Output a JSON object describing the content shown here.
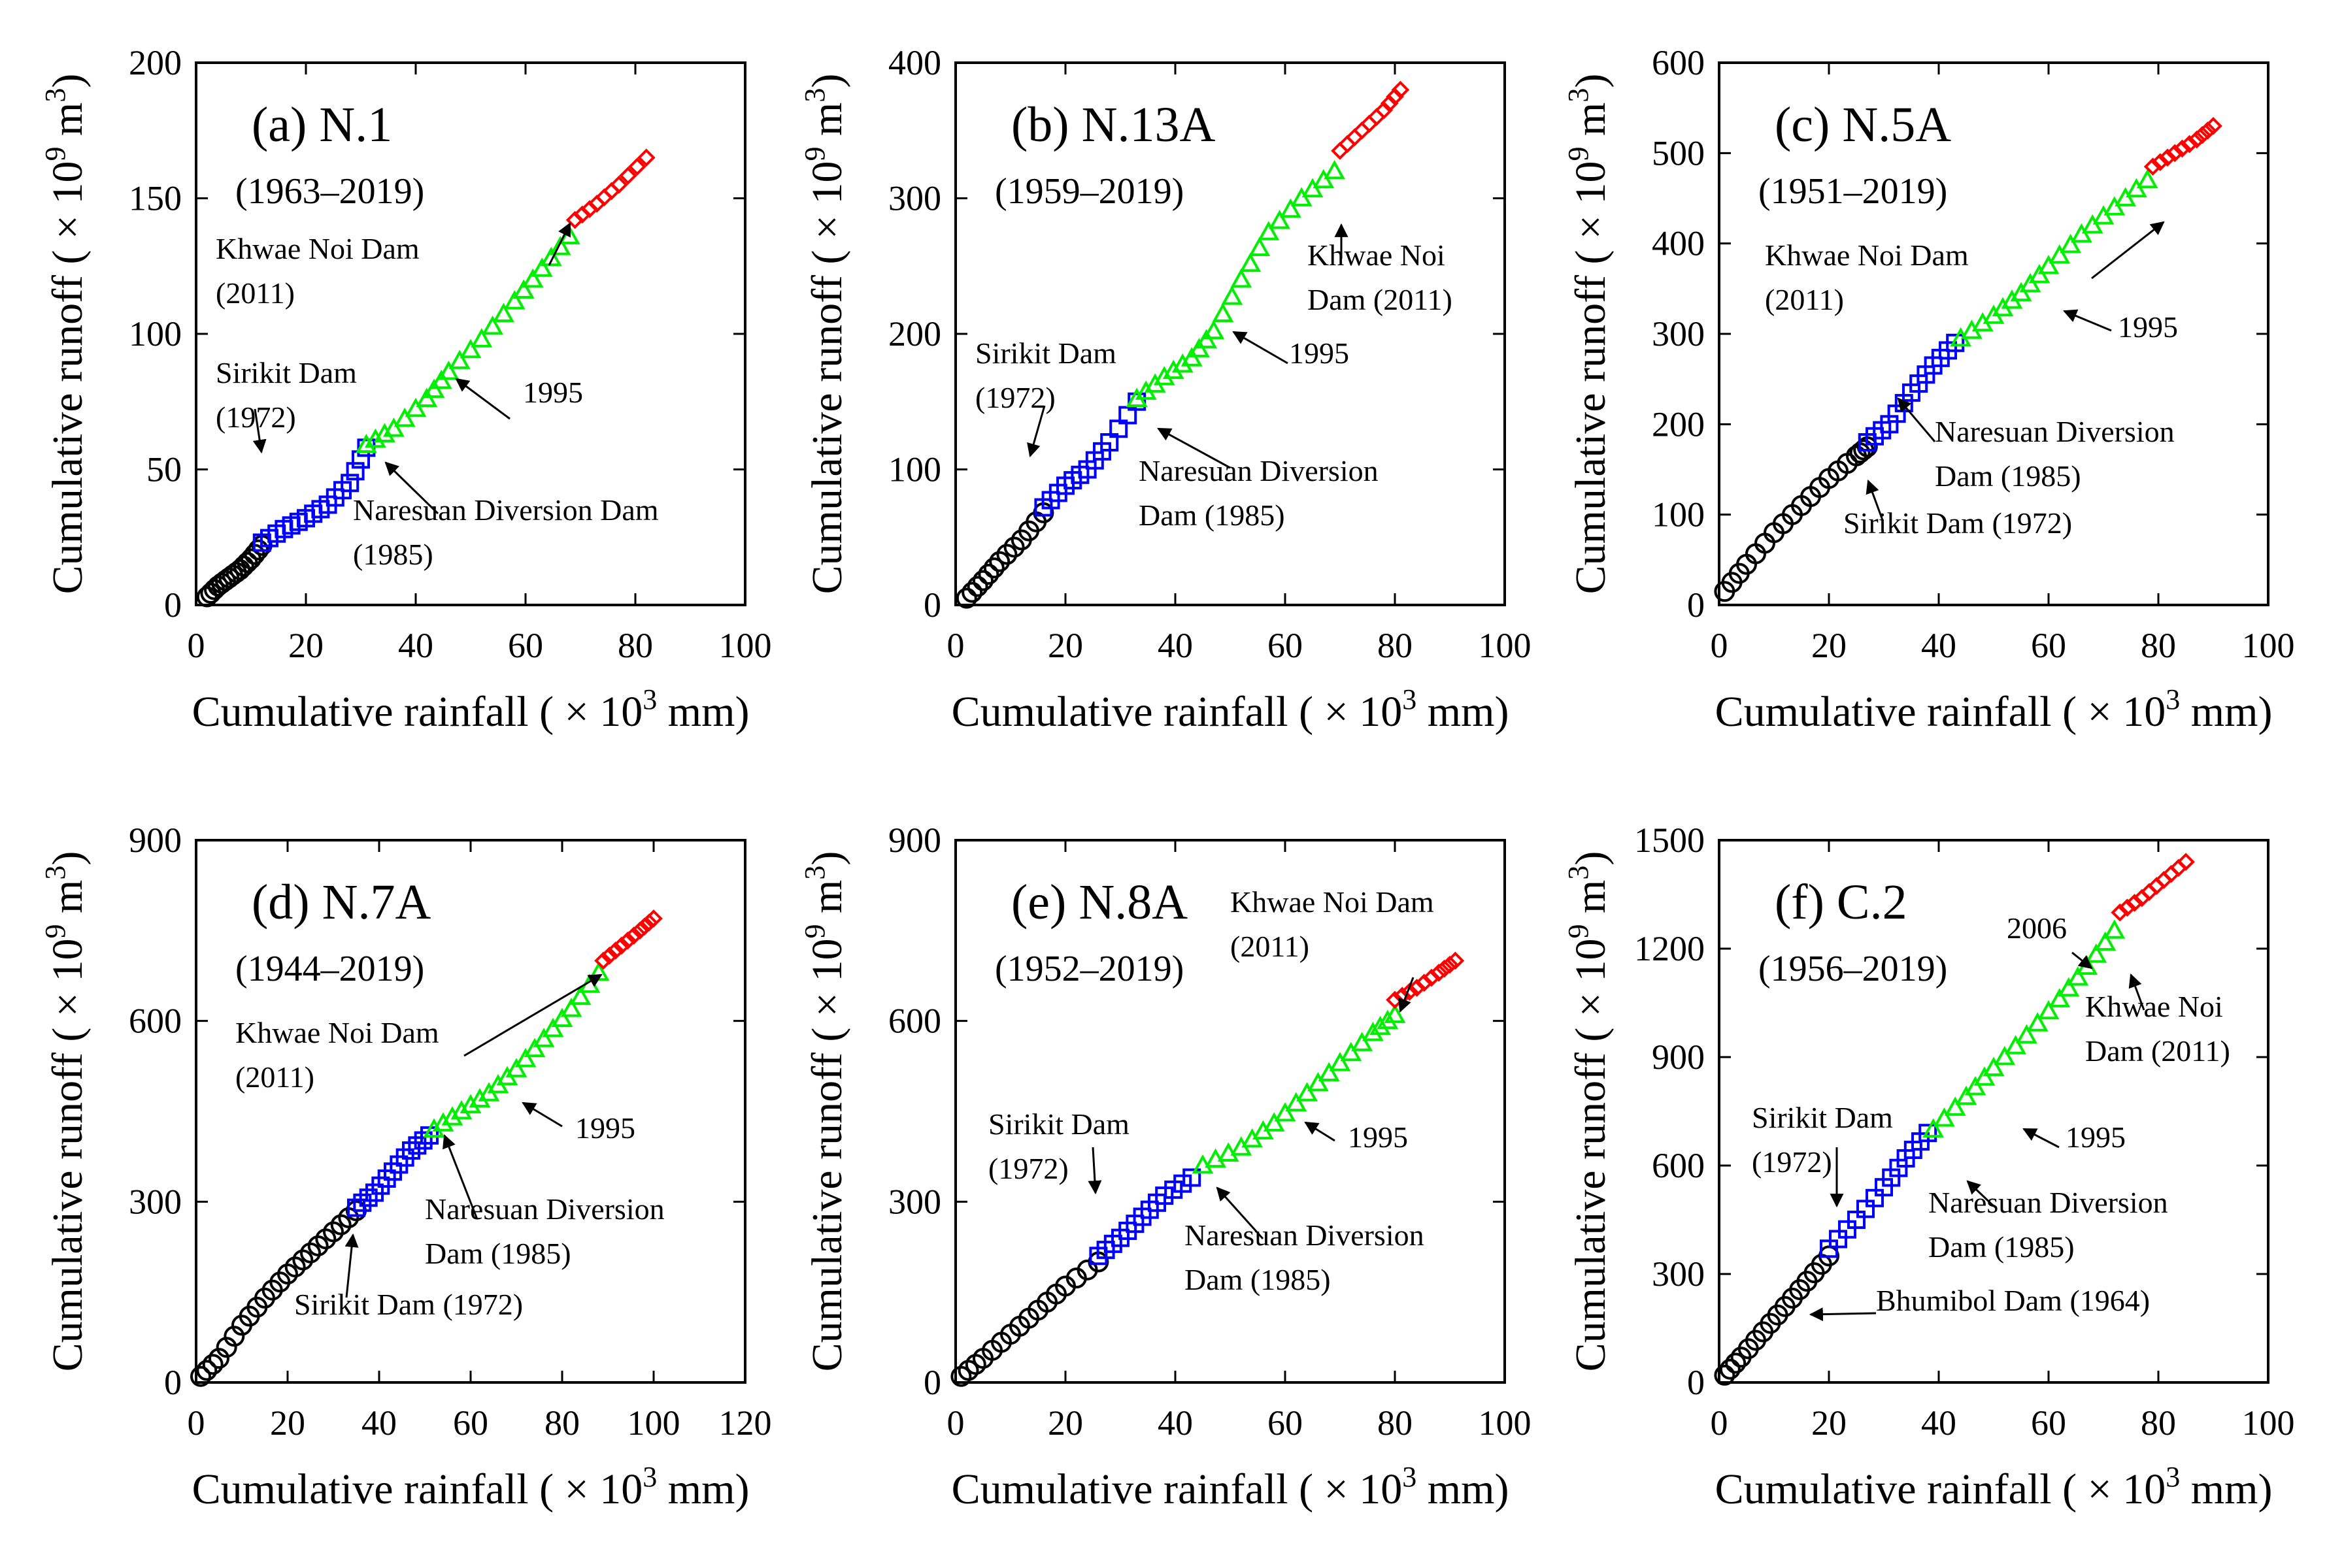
{
  "colors": {
    "pre": "#000000",
    "dam1": "#0000ff",
    "dam2": "#00ee00",
    "dam3": "#ff0000"
  },
  "chart_data": [
    {
      "type": "scatter",
      "title": "(a) N.1",
      "period": "(1963–2019)",
      "xlabel": "Cumulative rainfall",
      "ylabel": "Cumulative runoff",
      "xlim": [
        0,
        100
      ],
      "ylim": [
        0,
        200
      ],
      "xticks": [
        "0",
        "20",
        "40",
        "60",
        "80",
        "100"
      ],
      "yticks": [
        "0",
        "50",
        "100",
        "150",
        "200"
      ],
      "series": [
        {
          "segment": "pre",
          "marker": "circle",
          "points": [
            [
              2,
              3
            ],
            [
              4,
              7
            ],
            [
              6,
              10
            ],
            [
              8,
              13
            ],
            [
              10,
              17
            ],
            [
              12,
              22
            ]
          ]
        },
        {
          "segment": "dam1",
          "marker": "square",
          "points": [
            [
              12,
              23
            ],
            [
              16,
              28
            ],
            [
              20,
              32
            ],
            [
              24,
              37
            ],
            [
              28,
              45
            ],
            [
              31,
              58
            ]
          ]
        },
        {
          "segment": "dam2",
          "marker": "triangle",
          "points": [
            [
              31,
              59
            ],
            [
              36,
              65
            ],
            [
              42,
              76
            ],
            [
              46,
              86
            ],
            [
              52,
              98
            ],
            [
              58,
              112
            ],
            [
              63,
              124
            ],
            [
              68,
              136
            ]
          ]
        },
        {
          "segment": "dam3",
          "marker": "diamond",
          "points": [
            [
              69,
              142
            ],
            [
              73,
              148
            ],
            [
              77,
              155
            ],
            [
              82,
              165
            ]
          ]
        }
      ],
      "annotations": [
        {
          "text": [
            "Khwae Noi Dam",
            "(2011)"
          ]
        },
        {
          "text": [
            "Sirikit Dam",
            "(1972)"
          ]
        },
        {
          "text": [
            "1995"
          ]
        },
        {
          "text": [
            "Naresuan Diversion Dam",
            "(1985)"
          ]
        }
      ]
    },
    {
      "type": "scatter",
      "title": "(b) N.13A",
      "period": "(1959–2019)",
      "xlabel": "Cumulative rainfall",
      "ylabel": "Cumulative runoff",
      "xlim": [
        0,
        100
      ],
      "ylim": [
        0,
        400
      ],
      "xticks": [
        "0",
        "20",
        "40",
        "60",
        "80",
        "100"
      ],
      "yticks": [
        "0",
        "100",
        "200",
        "300",
        "400"
      ],
      "series": [
        {
          "segment": "pre",
          "marker": "circle",
          "points": [
            [
              2,
              5
            ],
            [
              5,
              18
            ],
            [
              8,
              32
            ],
            [
              12,
              48
            ],
            [
              16,
              68
            ]
          ]
        },
        {
          "segment": "dam1",
          "marker": "square",
          "points": [
            [
              16,
              72
            ],
            [
              20,
              88
            ],
            [
              24,
              100
            ],
            [
              28,
              120
            ],
            [
              33,
              150
            ]
          ]
        },
        {
          "segment": "dam2",
          "marker": "triangle",
          "points": [
            [
              33,
              152
            ],
            [
              38,
              168
            ],
            [
              43,
              182
            ],
            [
              47,
              202
            ],
            [
              52,
              240
            ],
            [
              57,
              275
            ],
            [
              63,
              300
            ],
            [
              69,
              320
            ]
          ]
        },
        {
          "segment": "dam3",
          "marker": "diamond",
          "points": [
            [
              70,
              335
            ],
            [
              74,
              350
            ],
            [
              78,
              365
            ],
            [
              81,
              380
            ]
          ]
        }
      ],
      "annotations": [
        {
          "text": [
            "Khwae Noi",
            "Dam (2011)"
          ]
        },
        {
          "text": [
            "Sirikit Dam",
            "(1972)"
          ]
        },
        {
          "text": [
            "1995"
          ]
        },
        {
          "text": [
            "Naresuan Diversion",
            "Dam (1985)"
          ]
        }
      ]
    },
    {
      "type": "scatter",
      "title": "(c) N.5A",
      "period": "(1951–2019)",
      "xlabel": "Cumulative rainfall",
      "ylabel": "Cumulative runoff",
      "xlim": [
        0,
        100
      ],
      "ylim": [
        0,
        600
      ],
      "xticks": [
        "0",
        "20",
        "40",
        "60",
        "80",
        "100"
      ],
      "yticks": [
        "0",
        "100",
        "200",
        "300",
        "400",
        "500",
        "600"
      ],
      "series": [
        {
          "segment": "pre",
          "marker": "circle",
          "points": [
            [
              1,
              15
            ],
            [
              5,
              45
            ],
            [
              10,
              80
            ],
            [
              15,
              110
            ],
            [
              20,
              140
            ],
            [
              25,
              165
            ],
            [
              27,
              175
            ]
          ]
        },
        {
          "segment": "dam1",
          "marker": "square",
          "points": [
            [
              27,
              180
            ],
            [
              31,
              200
            ],
            [
              35,
              235
            ],
            [
              39,
              265
            ],
            [
              43,
              290
            ]
          ]
        },
        {
          "segment": "dam2",
          "marker": "triangle",
          "points": [
            [
              44,
              295
            ],
            [
              50,
              320
            ],
            [
              55,
              345
            ],
            [
              60,
              375
            ],
            [
              66,
              410
            ],
            [
              72,
              440
            ],
            [
              78,
              470
            ]
          ]
        },
        {
          "segment": "dam3",
          "marker": "diamond",
          "points": [
            [
              79,
              485
            ],
            [
              83,
              500
            ],
            [
              87,
              515
            ],
            [
              90,
              530
            ]
          ]
        }
      ],
      "annotations": [
        {
          "text": [
            "Khwae Noi Dam",
            "(2011)"
          ]
        },
        {
          "text": [
            "1995"
          ]
        },
        {
          "text": [
            "Naresuan Diversion",
            "Dam (1985)"
          ]
        },
        {
          "text": [
            "Sirikit Dam (1972)"
          ]
        }
      ]
    },
    {
      "type": "scatter",
      "title": "(d) N.7A",
      "period": "(1944–2019)",
      "xlabel": "Cumulative rainfall",
      "ylabel": "Cumulative runoff",
      "xlim": [
        0,
        120
      ],
      "ylim": [
        0,
        900
      ],
      "xticks": [
        "0",
        "20",
        "40",
        "60",
        "80",
        "100",
        "120"
      ],
      "yticks": [
        "0",
        "300",
        "600",
        "900"
      ],
      "series": [
        {
          "segment": "pre",
          "marker": "circle",
          "points": [
            [
              1,
              10
            ],
            [
              5,
              40
            ],
            [
              10,
              95
            ],
            [
              15,
              140
            ],
            [
              20,
              180
            ],
            [
              25,
              215
            ],
            [
              30,
              250
            ],
            [
              35,
              285
            ]
          ]
        },
        {
          "segment": "dam1",
          "marker": "square",
          "points": [
            [
              35,
              290
            ],
            [
              39,
              315
            ],
            [
              43,
              350
            ],
            [
              47,
              385
            ],
            [
              51,
              410
            ]
          ]
        },
        {
          "segment": "dam2",
          "marker": "triangle",
          "points": [
            [
              52,
              420
            ],
            [
              58,
              450
            ],
            [
              64,
              480
            ],
            [
              70,
              520
            ],
            [
              76,
              570
            ],
            [
              82,
              620
            ],
            [
              88,
              680
            ]
          ]
        },
        {
          "segment": "dam3",
          "marker": "diamond",
          "points": [
            [
              89,
              700
            ],
            [
              93,
              725
            ],
            [
              97,
              750
            ],
            [
              100,
              770
            ]
          ]
        }
      ],
      "annotations": [
        {
          "text": [
            "Khwae Noi Dam",
            "(2011)"
          ]
        },
        {
          "text": [
            "1995"
          ]
        },
        {
          "text": [
            "Naresuan Diversion",
            "Dam (1985)"
          ]
        },
        {
          "text": [
            "Sirikit Dam (1972)"
          ]
        }
      ]
    },
    {
      "type": "scatter",
      "title": "(e) N.8A",
      "period": "(1952–2019)",
      "xlabel": "Cumulative rainfall",
      "ylabel": "Cumulative runoff",
      "xlim": [
        0,
        100
      ],
      "ylim": [
        0,
        900
      ],
      "xticks": [
        "0",
        "20",
        "40",
        "60",
        "80",
        "100"
      ],
      "yticks": [
        "0",
        "300",
        "600",
        "900"
      ],
      "series": [
        {
          "segment": "pre",
          "marker": "circle",
          "points": [
            [
              1,
              10
            ],
            [
              5,
              40
            ],
            [
              10,
              80
            ],
            [
              15,
              120
            ],
            [
              20,
              160
            ],
            [
              26,
              200
            ]
          ]
        },
        {
          "segment": "dam1",
          "marker": "square",
          "points": [
            [
              26,
              210
            ],
            [
              30,
              240
            ],
            [
              34,
              275
            ],
            [
              38,
              310
            ],
            [
              43,
              340
            ]
          ]
        },
        {
          "segment": "dam2",
          "marker": "triangle",
          "points": [
            [
              45,
              360
            ],
            [
              52,
              390
            ],
            [
              58,
              430
            ],
            [
              64,
              480
            ],
            [
              70,
              530
            ],
            [
              76,
              580
            ],
            [
              80,
              610
            ]
          ]
        },
        {
          "segment": "dam3",
          "marker": "diamond",
          "points": [
            [
              80,
              635
            ],
            [
              84,
              655
            ],
            [
              88,
              680
            ],
            [
              91,
              700
            ]
          ]
        }
      ],
      "annotations": [
        {
          "text": [
            "Khwae Noi Dam",
            "(2011)"
          ]
        },
        {
          "text": [
            "Sirikit Dam",
            "(1972)"
          ]
        },
        {
          "text": [
            "1995"
          ]
        },
        {
          "text": [
            "Naresuan Diversion",
            "Dam (1985)"
          ]
        }
      ]
    },
    {
      "type": "scatter",
      "title": "(f) C.2",
      "period": "(1956–2019)",
      "xlabel": "Cumulative rainfall",
      "ylabel": "Cumulative runoff",
      "xlim": [
        0,
        100
      ],
      "ylim": [
        0,
        1500
      ],
      "xticks": [
        "0",
        "20",
        "40",
        "60",
        "80",
        "100"
      ],
      "yticks": [
        "0",
        "300",
        "600",
        "900",
        "1200",
        "1500"
      ],
      "series": [
        {
          "segment": "pre",
          "marker": "circle",
          "points": [
            [
              1,
              20
            ],
            [
              4,
              70
            ],
            [
              8,
              140
            ],
            [
              12,
              210
            ],
            [
              16,
              280
            ],
            [
              20,
              350
            ]
          ]
        },
        {
          "segment": "dam1",
          "marker": "square",
          "points": [
            [
              20,
              370
            ],
            [
              25,
              450
            ],
            [
              30,
              540
            ],
            [
              34,
              620
            ],
            [
              38,
              690
            ]
          ]
        },
        {
          "segment": "dam2",
          "marker": "triangle",
          "points": [
            [
              39,
              700
            ],
            [
              45,
              790
            ],
            [
              50,
              870
            ],
            [
              56,
              960
            ],
            [
              62,
              1060
            ],
            [
              67,
              1150
            ],
            [
              72,
              1250
            ]
          ]
        },
        {
          "segment": "dam3",
          "marker": "diamond",
          "points": [
            [
              73,
              1300
            ],
            [
              77,
              1340
            ],
            [
              81,
              1390
            ],
            [
              85,
              1440
            ]
          ]
        }
      ],
      "annotations": [
        {
          "text": [
            "2006"
          ]
        },
        {
          "text": [
            "Khwae Noi",
            "Dam (2011)"
          ]
        },
        {
          "text": [
            "Sirikit Dam",
            "(1972)"
          ]
        },
        {
          "text": [
            "1995"
          ]
        },
        {
          "text": [
            "Naresuan Diversion",
            "Dam (1985)"
          ]
        },
        {
          "text": [
            "Bhumibol Dam (1964)"
          ]
        }
      ]
    }
  ]
}
